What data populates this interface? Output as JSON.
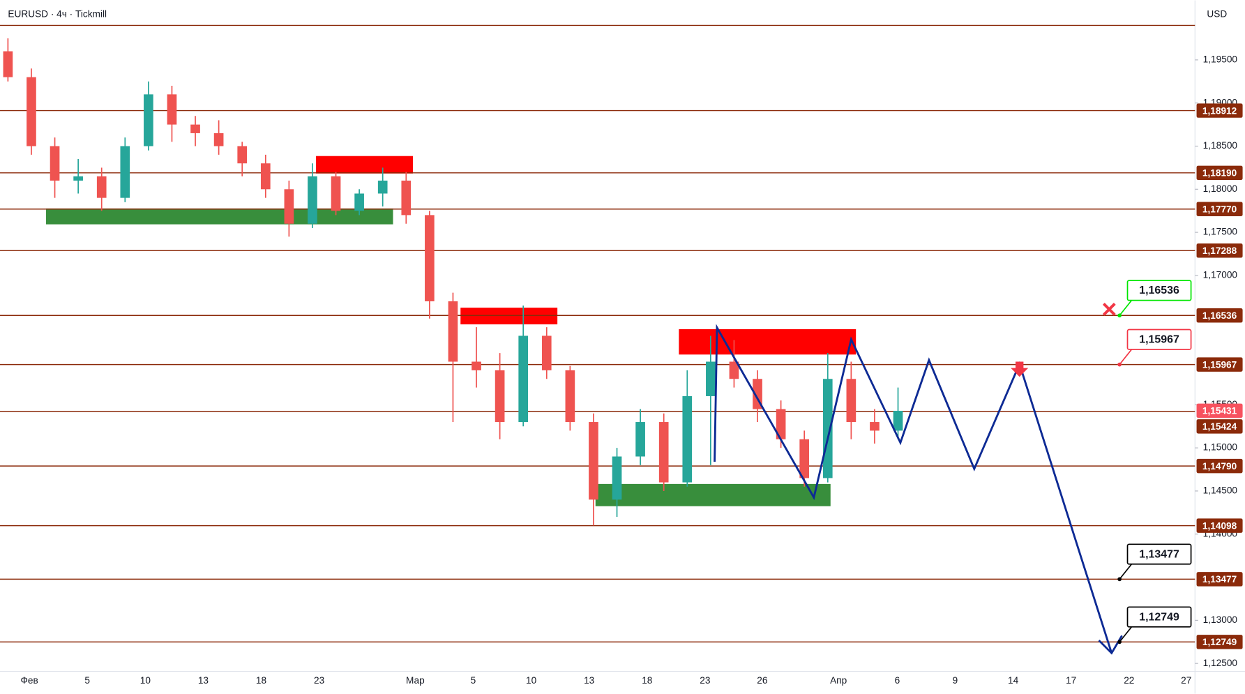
{
  "chart_data": {
    "type": "candlestick",
    "title": "EURUSD · 4ч · Tickmill",
    "currency": "USD",
    "x_labels": [
      "Фев",
      "5",
      "10",
      "13",
      "18",
      "23",
      "Мар",
      "5",
      "10",
      "13",
      "18",
      "23",
      "26",
      "Апр",
      "6",
      "9",
      "14",
      "17",
      "22",
      "27"
    ],
    "ylim": [
      1.12408,
      1.2019
    ],
    "yticks": [
      {
        "value": 1.195,
        "label": "1,19500"
      },
      {
        "value": 1.19,
        "label": "1,19000"
      },
      {
        "value": 1.185,
        "label": "1,18500"
      },
      {
        "value": 1.18,
        "label": "1,18000"
      },
      {
        "value": 1.175,
        "label": "1,17500"
      },
      {
        "value": 1.17,
        "label": "1,17000"
      },
      {
        "value": 1.155,
        "label": "1,15500"
      },
      {
        "value": 1.15,
        "label": "1,15000"
      },
      {
        "value": 1.145,
        "label": "1,14500"
      },
      {
        "value": 1.14,
        "label": "1,14000"
      },
      {
        "value": 1.13,
        "label": "1,13000"
      },
      {
        "value": 1.125,
        "label": "1,12500"
      }
    ],
    "up_color": "#26a69a",
    "down_color": "#ef5350",
    "level_color": "#8b2a0a",
    "candles": [
      [
        1.196,
        1.1975,
        1.1925,
        1.193
      ],
      [
        1.193,
        1.194,
        1.184,
        1.185
      ],
      [
        1.185,
        1.186,
        1.179,
        1.181
      ],
      [
        1.181,
        1.1835,
        1.1795,
        1.1815
      ],
      [
        1.1815,
        1.1825,
        1.1775,
        1.179
      ],
      [
        1.179,
        1.186,
        1.1785,
        1.185
      ],
      [
        1.185,
        1.1925,
        1.1845,
        1.191
      ],
      [
        1.191,
        1.192,
        1.1855,
        1.1875
      ],
      [
        1.1875,
        1.1885,
        1.185,
        1.1865
      ],
      [
        1.1865,
        1.188,
        1.184,
        1.185
      ],
      [
        1.185,
        1.1855,
        1.1815,
        1.183
      ],
      [
        1.183,
        1.184,
        1.179,
        1.18
      ],
      [
        1.18,
        1.181,
        1.1745,
        1.176
      ],
      [
        1.176,
        1.183,
        1.1755,
        1.1815
      ],
      [
        1.1815,
        1.182,
        1.177,
        1.1775
      ],
      [
        1.1775,
        1.18,
        1.177,
        1.1795
      ],
      [
        1.1795,
        1.1825,
        1.178,
        1.181
      ],
      [
        1.181,
        1.182,
        1.176,
        1.177
      ],
      [
        1.177,
        1.1775,
        1.165,
        1.167
      ],
      [
        1.167,
        1.168,
        1.153,
        1.16
      ],
      [
        1.16,
        1.164,
        1.157,
        1.159
      ],
      [
        1.159,
        1.161,
        1.151,
        1.153
      ],
      [
        1.153,
        1.1665,
        1.1525,
        1.163
      ],
      [
        1.163,
        1.164,
        1.158,
        1.159
      ],
      [
        1.159,
        1.1595,
        1.152,
        1.153
      ],
      [
        1.153,
        1.154,
        1.141,
        1.144
      ],
      [
        1.144,
        1.15,
        1.142,
        1.149
      ],
      [
        1.149,
        1.1545,
        1.148,
        1.153
      ],
      [
        1.153,
        1.154,
        1.145,
        1.146
      ],
      [
        1.146,
        1.159,
        1.1455,
        1.156
      ],
      [
        1.156,
        1.163,
        1.148,
        1.16
      ],
      [
        1.16,
        1.1625,
        1.157,
        1.158
      ],
      [
        1.158,
        1.159,
        1.153,
        1.1545
      ],
      [
        1.1545,
        1.1555,
        1.15,
        1.151
      ],
      [
        1.151,
        1.152,
        1.1455,
        1.1465
      ],
      [
        1.1465,
        1.161,
        1.146,
        1.158
      ],
      [
        1.158,
        1.16,
        1.151,
        1.153
      ],
      [
        1.153,
        1.1545,
        1.1505,
        1.152
      ],
      [
        1.152,
        1.157,
        1.151,
        1.1543
      ]
    ],
    "top_line": 1.199,
    "levels": [
      {
        "value": 1.18912,
        "label": "1,18912"
      },
      {
        "value": 1.1819,
        "label": "1,18190"
      },
      {
        "value": 1.1777,
        "label": "1,17770"
      },
      {
        "value": 1.17288,
        "label": "1,17288"
      },
      {
        "value": 1.16536,
        "label": "1,16536"
      },
      {
        "value": 1.15967,
        "label": "1,15967"
      },
      {
        "value": 1.15424,
        "label": "1,15424"
      },
      {
        "value": 1.1479,
        "label": "1,14790"
      },
      {
        "value": 1.14098,
        "label": "1,14098"
      },
      {
        "value": 1.13477,
        "label": "1,13477"
      },
      {
        "value": 1.12749,
        "label": "1,12749"
      }
    ],
    "current_price": {
      "value": 1.15431,
      "label": "1,15431",
      "color": "#f7525f"
    },
    "targets": [
      {
        "value": 1.16536,
        "label": "1,16536",
        "color": "#00e600"
      },
      {
        "value": 1.15967,
        "label": "1,15967",
        "color": "#f23645"
      },
      {
        "value": 1.13477,
        "label": "1,13477",
        "color": "#000000"
      },
      {
        "value": 1.12749,
        "label": "1,12749",
        "color": "#000000"
      }
    ]
  }
}
